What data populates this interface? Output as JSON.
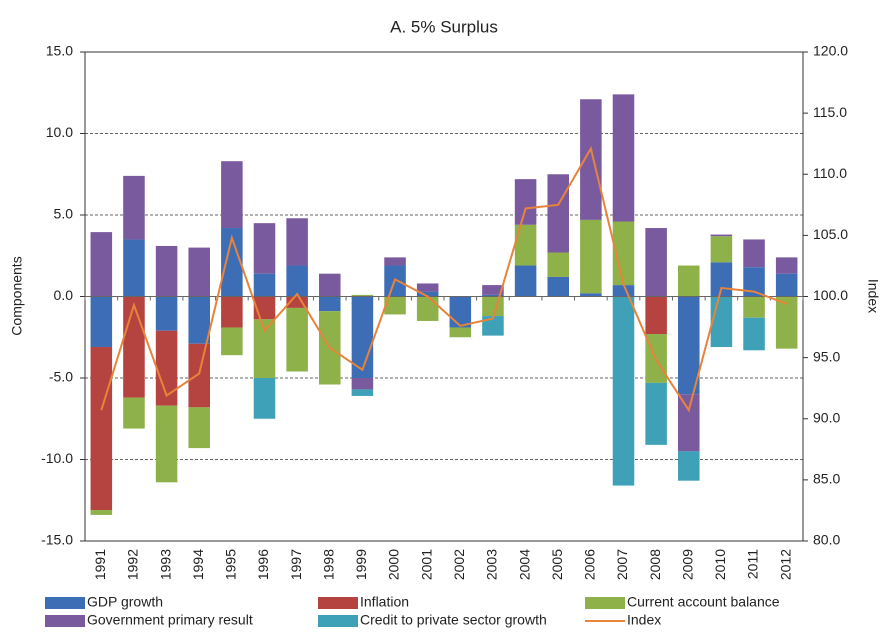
{
  "chart_data": {
    "type": "bar",
    "title": "A. 5% Surplus",
    "y_label": "Components",
    "y2_label": "Index",
    "stacked": true,
    "categories": [
      "1991",
      "1992",
      "1993",
      "1994",
      "1995",
      "1996",
      "1997",
      "1998",
      "1999",
      "2000",
      "2001",
      "2002",
      "2003",
      "2004",
      "2005",
      "2006",
      "2007",
      "2008",
      "2009",
      "2010",
      "2011",
      "2012"
    ],
    "series": [
      {
        "name": "GDP growth",
        "type": "bar",
        "color": "#3d6db5",
        "values": [
          -3.1,
          3.5,
          -2.1,
          -2.9,
          4.2,
          1.4,
          1.9,
          -0.9,
          -5.0,
          1.9,
          0.3,
          -1.9,
          0.1,
          1.9,
          1.2,
          0.2,
          0.7,
          0,
          -6.0,
          2.1,
          1.8,
          1.4
        ]
      },
      {
        "name": "Inflation",
        "type": "bar",
        "color": "#b5433f",
        "values": [
          -10.0,
          -6.2,
          -4.6,
          -3.9,
          -1.9,
          -1.4,
          -0.7,
          0,
          0,
          0,
          0,
          0,
          0,
          0,
          0,
          0,
          0,
          -2.3,
          0,
          0,
          0,
          0
        ]
      },
      {
        "name": "Current account balance",
        "type": "bar",
        "color": "#8fb14a",
        "values": [
          -0.3,
          -1.9,
          -4.7,
          -2.5,
          -1.7,
          -3.6,
          -3.9,
          -4.5,
          0.1,
          -1.1,
          -1.5,
          -0.6,
          -1.2,
          2.5,
          1.5,
          4.5,
          3.9,
          -3.0,
          1.9,
          1.6,
          -1.3,
          -3.2
        ]
      },
      {
        "name": "Government primary result",
        "type": "bar",
        "color": "#7a5a9e",
        "values": [
          3.95,
          3.9,
          3.1,
          3.0,
          4.1,
          3.1,
          2.9,
          1.4,
          -0.7,
          0.5,
          0.5,
          0,
          0.6,
          2.8,
          4.8,
          7.4,
          7.8,
          4.2,
          -3.5,
          0.1,
          1.7,
          1.0
        ]
      },
      {
        "name": "Credit to private sector growth",
        "type": "bar",
        "color": "#3ea1b8",
        "values": [
          0,
          0,
          0,
          0,
          0,
          -2.5,
          0,
          0,
          -0.4,
          0,
          0,
          0,
          -1.2,
          0,
          0,
          0,
          -11.6,
          -3.8,
          -1.8,
          -3.1,
          -2.0,
          0
        ]
      },
      {
        "name": "Index",
        "type": "line",
        "axis": "y2",
        "color": "#e8833a",
        "values": [
          90.7,
          99.3,
          91.9,
          93.7,
          104.8,
          97.2,
          100.2,
          95.8,
          94.0,
          101.4,
          100.0,
          97.6,
          98.2,
          107.2,
          107.5,
          112.1,
          101.0,
          94.8,
          90.7,
          100.7,
          100.4,
          99.4
        ]
      }
    ],
    "ylim": [
      -15,
      15
    ],
    "yticks": [
      {
        "value": -15,
        "label": "-15.0"
      },
      {
        "value": -10,
        "label": "-10.0"
      },
      {
        "value": -5,
        "label": "-5.0"
      },
      {
        "value": 0,
        "label": "0.0"
      },
      {
        "value": 5,
        "label": "5.0"
      },
      {
        "value": 10,
        "label": "10.0"
      },
      {
        "value": 15,
        "label": "15.0"
      }
    ],
    "y2lim": [
      80,
      120
    ],
    "y2ticks": [
      {
        "value": 80,
        "label": "80.0"
      },
      {
        "value": 85,
        "label": "85.0"
      },
      {
        "value": 90,
        "label": "90.0"
      },
      {
        "value": 95,
        "label": "95.0"
      },
      {
        "value": 100,
        "label": "100.0"
      },
      {
        "value": 105,
        "label": "105.0"
      },
      {
        "value": 110,
        "label": "110.0"
      },
      {
        "value": 115,
        "label": "115.0"
      },
      {
        "value": 120,
        "label": "120.0"
      }
    ],
    "grid": true,
    "legend": "bottom"
  }
}
